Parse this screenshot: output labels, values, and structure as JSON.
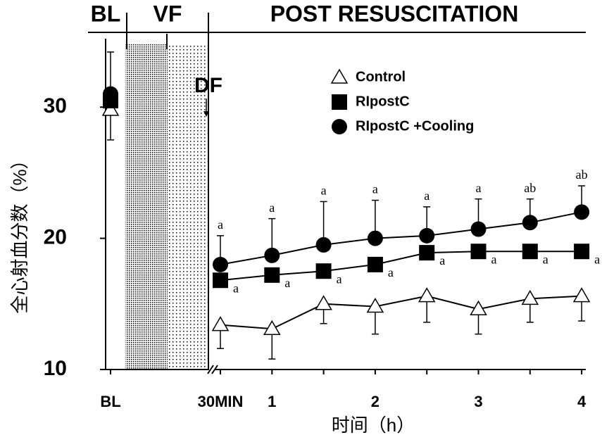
{
  "chart_data": {
    "type": "line",
    "header": [
      "BL",
      "VF",
      "POST RESUSCITATION"
    ],
    "annotation": "DF",
    "y_label": "全心射血分数（%）",
    "x_label": "时间（h）",
    "categories": [
      "BL",
      "30MIN",
      "1",
      null,
      "2",
      null,
      "3",
      null,
      "4"
    ],
    "ylim": [
      10,
      35
    ],
    "yticks": [
      10,
      20,
      30
    ],
    "series": [
      {
        "name": "Control",
        "marker": "triangle",
        "color": "#000",
        "values": [
          29.8,
          13.4,
          13.1,
          15.0,
          14.8,
          15.6,
          14.6,
          15.4,
          15.6
        ],
        "errors": [
          2.3,
          1.8,
          2.3,
          1.5,
          2.1,
          2.0,
          1.9,
          1.8,
          1.9
        ],
        "error_dir": "down",
        "labels": [
          null,
          null,
          null,
          null,
          null,
          null,
          null,
          null,
          null
        ]
      },
      {
        "name": "RIpostC",
        "marker": "square",
        "color": "#000",
        "values": [
          30.5,
          16.8,
          17.2,
          17.5,
          18.0,
          18.9,
          19.0,
          19.0,
          19.0
        ],
        "labels": [
          null,
          "a",
          "a",
          "a",
          "a",
          "a",
          "a",
          "a",
          "a"
        ],
        "label_pos": "right"
      },
      {
        "name": "RIpostC +Cooling",
        "marker": "circle",
        "color": "#000",
        "values": [
          31.0,
          18.0,
          18.7,
          19.5,
          20.0,
          20.2,
          20.7,
          21.2,
          22.0
        ],
        "errors": [
          3.2,
          2.2,
          2.8,
          3.3,
          2.9,
          2.2,
          2.3,
          1.8,
          2.0
        ],
        "error_dir": "up",
        "labels": [
          null,
          "a",
          "a",
          "a",
          "a",
          "a",
          "a",
          "ab",
          "ab"
        ],
        "label_pos": "top"
      }
    ]
  }
}
